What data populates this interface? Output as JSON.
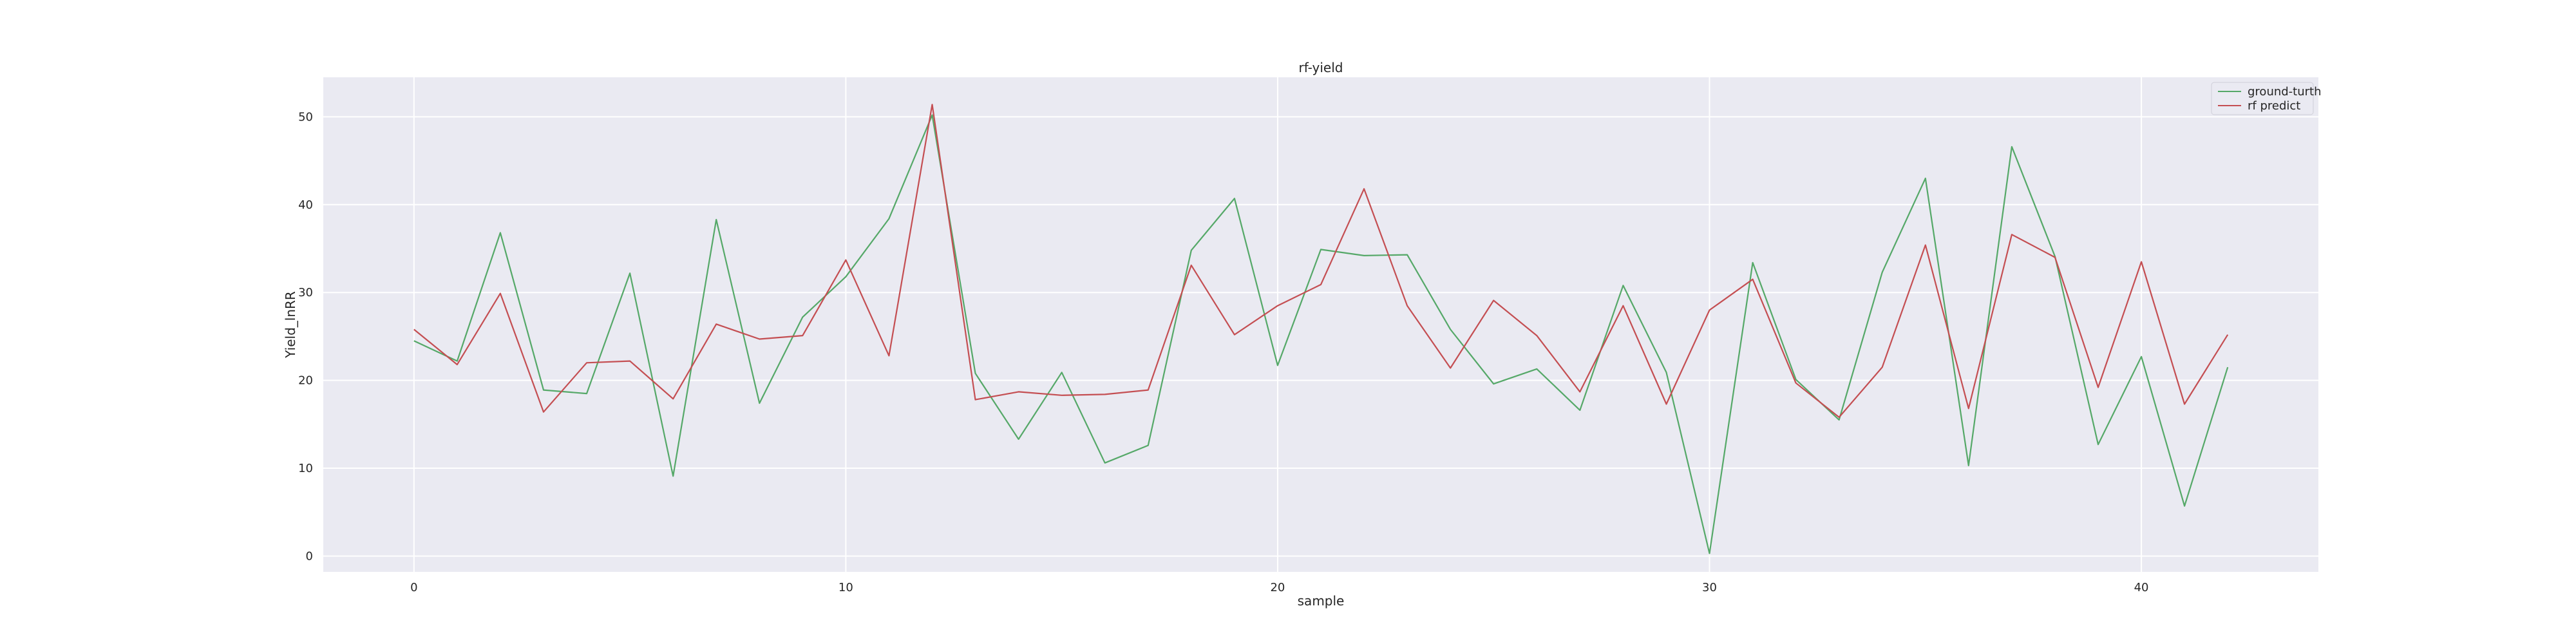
{
  "chart_data": {
    "type": "line",
    "title": "rf-yield",
    "xlabel": "sample",
    "ylabel": "Yield_lnRR",
    "xlim": [
      -2.1,
      44.1
    ],
    "ylim": [
      -1.8,
      54.5
    ],
    "xticks": [
      0,
      10,
      20,
      30,
      40
    ],
    "yticks": [
      0,
      10,
      20,
      30,
      40,
      50
    ],
    "grid": true,
    "legend_position": "top-right",
    "x": [
      0,
      1,
      2,
      3,
      4,
      5,
      6,
      7,
      8,
      9,
      10,
      11,
      12,
      13,
      14,
      15,
      16,
      17,
      18,
      19,
      20,
      21,
      22,
      23,
      24,
      25,
      26,
      27,
      28,
      29,
      30,
      31,
      32,
      33,
      34,
      35,
      36,
      37,
      38,
      39,
      40,
      41,
      42
    ],
    "series": [
      {
        "name": "ground-turth",
        "color": "#55a868",
        "values": [
          24.5,
          22.2,
          36.8,
          18.9,
          18.5,
          32.2,
          9.1,
          38.3,
          17.4,
          27.2,
          31.8,
          38.4,
          50.2,
          20.8,
          13.3,
          20.9,
          10.6,
          12.6,
          34.8,
          40.7,
          21.7,
          34.9,
          34.2,
          34.3,
          25.8,
          19.6,
          21.3,
          16.6,
          30.8,
          20.9,
          0.3,
          33.4,
          20.1,
          15.5,
          32.3,
          43.0,
          10.3,
          46.6,
          34.1,
          12.7,
          22.7,
          5.7,
          21.5
        ]
      },
      {
        "name": "rf predict",
        "color": "#c44e52",
        "values": [
          25.8,
          21.8,
          29.9,
          16.4,
          22.0,
          22.2,
          17.9,
          26.4,
          24.7,
          25.1,
          33.7,
          22.8,
          51.4,
          17.8,
          18.7,
          18.3,
          18.4,
          18.9,
          33.1,
          25.2,
          28.5,
          30.9,
          41.8,
          28.5,
          21.4,
          29.1,
          25.1,
          18.7,
          28.5,
          17.3,
          28.0,
          31.5,
          19.7,
          15.8,
          21.5,
          35.4,
          16.8,
          36.6,
          34.0,
          19.2,
          33.5,
          17.3,
          25.2
        ]
      }
    ],
    "colors": {
      "plot_background": "#eaeaf2",
      "grid": "#ffffff"
    }
  }
}
